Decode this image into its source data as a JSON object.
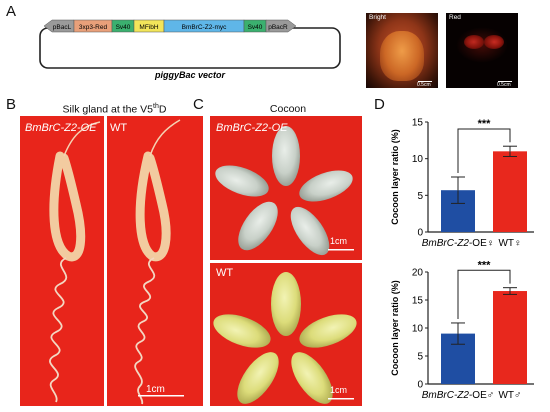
{
  "panels": {
    "a": "A",
    "b": "B",
    "c": "C",
    "d": "D"
  },
  "vector": {
    "left_end": "pBacL",
    "segments": [
      {
        "label": "3xp3-Red",
        "color": "#e9a07a"
      },
      {
        "label": "Sv40",
        "color": "#3bb06f"
      },
      {
        "label": "MFibH",
        "color": "#f2e55a"
      },
      {
        "label": "BmBrC-Z2-myc",
        "color": "#5fb6e8"
      },
      {
        "label": "Sv40",
        "color": "#3bb06f"
      }
    ],
    "right_end": "pBacR",
    "title": "piggyBac vector"
  },
  "fluor": {
    "bright_label": "Bright",
    "red_label": "Red",
    "bright_scale": "0.5cm",
    "red_scale": "0.5cm"
  },
  "panel_b": {
    "title_pre": "Silk gland at the V5",
    "title_sup": "th",
    "title_post": "D",
    "left_label": "BmBrC-Z2-OE",
    "right_label": "WT",
    "scale": "1cm"
  },
  "panel_c": {
    "title": "Cocoon",
    "top_label": "BmBrC-Z2-OE",
    "bottom_label": "WT",
    "scale_top": "1cm",
    "scale_bottom": "1cm"
  },
  "chart_data": [
    {
      "type": "bar",
      "categories": [
        "BmBrC-Z2-OE♀",
        "WT♀"
      ],
      "values": [
        5.7,
        11.0
      ],
      "errors": [
        1.8,
        0.7
      ],
      "colors": [
        "#1f4ea3",
        "#e8281d"
      ],
      "ylabel": "Cocoon layer ratio (%)",
      "ylim": [
        0,
        15
      ],
      "yticks": [
        0,
        5,
        10,
        15
      ],
      "significance": "***"
    },
    {
      "type": "bar",
      "categories": [
        "BmBrC-Z2-OE♂",
        "WT♂"
      ],
      "values": [
        9.0,
        16.6
      ],
      "errors": [
        1.9,
        0.6
      ],
      "colors": [
        "#1f4ea3",
        "#e8281d"
      ],
      "ylabel": "Cocoon layer ratio (%)",
      "ylim": [
        0,
        20
      ],
      "yticks": [
        0,
        5,
        10,
        15,
        20
      ],
      "significance": "***"
    }
  ]
}
